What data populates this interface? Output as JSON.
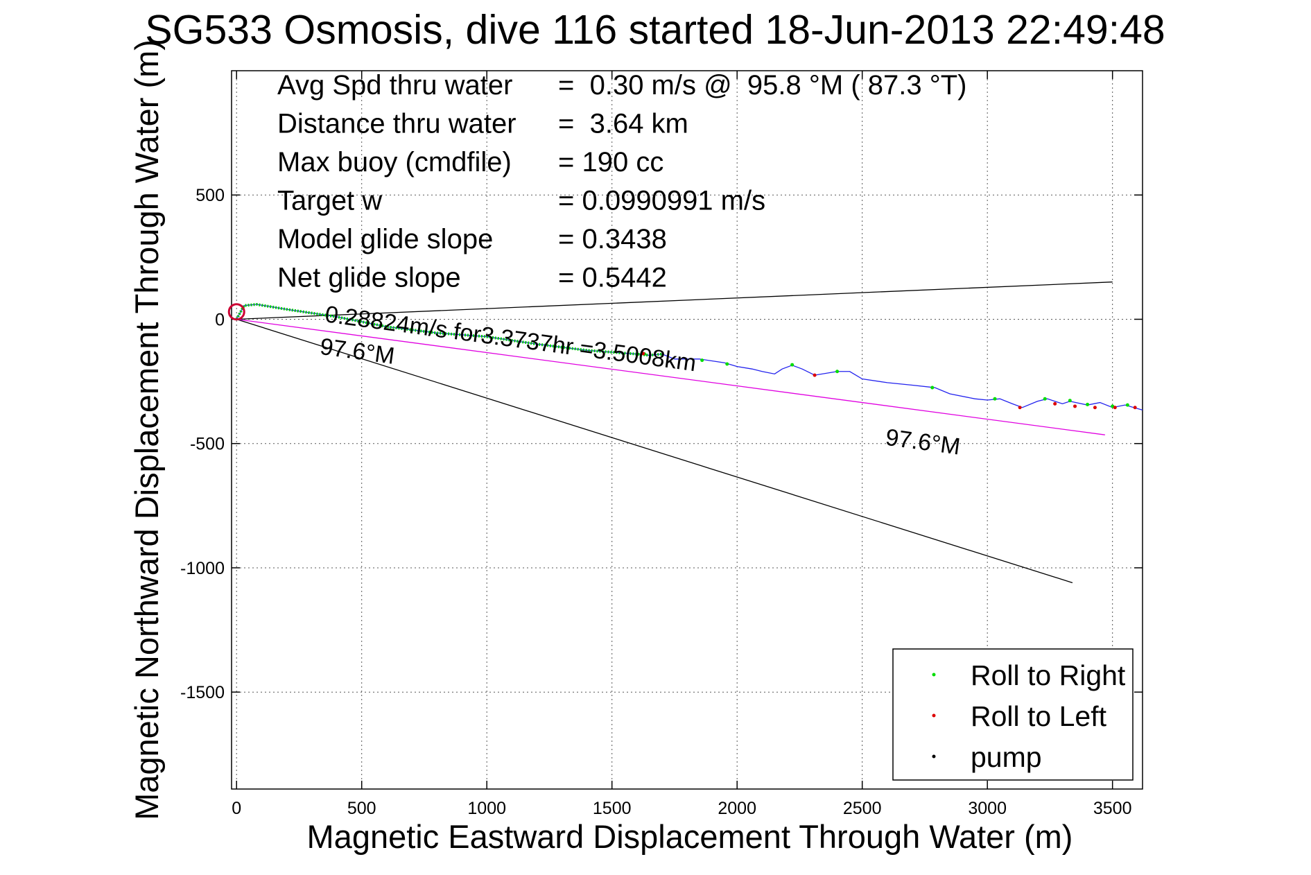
{
  "chart_data": {
    "type": "line",
    "title": "SG533 Osmosis, dive 116 started 18-Jun-2013 22:49:48",
    "xlabel": "Magnetic Eastward Displacement Through Water (m)",
    "ylabel": "Magnetic Northward Displacement Through Water (m)",
    "xlim": [
      -20,
      3620
    ],
    "ylim": [
      -1890,
      1000
    ],
    "xticks": [
      0,
      500,
      1000,
      1500,
      2000,
      2500,
      3000,
      3500
    ],
    "yticks": [
      500,
      0,
      -500,
      -1000,
      -1500
    ],
    "grid": true,
    "info_lines": [
      {
        "label": "Avg Spd thru water",
        "value": "=  0.30 m/s @  95.8 °M ( 87.3 °T)"
      },
      {
        "label": "Distance thru water",
        "value": "=  3.64 km"
      },
      {
        "label": "Max buoy (cmdfile)",
        "value": "= 190 cc"
      },
      {
        "label": "Target w",
        "value": "= 0.0990991 m/s"
      },
      {
        "label": "Model glide slope",
        "value": "= 0.3438"
      },
      {
        "label": "Net glide slope",
        "value": "= 0.5442"
      }
    ],
    "annotations": [
      {
        "text": "0.28824m/s for3.3737hr =3.5008km",
        "x": 350,
        "y": -10,
        "angle_deg": 7.6
      },
      {
        "text": "97.6°M",
        "x": 330,
        "y": -140,
        "angle_deg": 7.6
      },
      {
        "text": "97.6°M",
        "x": 2590,
        "y": -505,
        "angle_deg": 7.6
      }
    ],
    "lines": [
      {
        "name": "upper reference",
        "color": "#000000",
        "points": [
          [
            0,
            0
          ],
          [
            3500,
            150
          ]
        ]
      },
      {
        "name": "lower reference",
        "color": "#000000",
        "points": [
          [
            0,
            0
          ],
          [
            3340,
            -1060
          ]
        ]
      },
      {
        "name": "course line",
        "color": "#e000e0",
        "points": [
          [
            0,
            0
          ],
          [
            3470,
            -465
          ]
        ]
      }
    ],
    "series": [
      {
        "name": "track",
        "color": "#2222ee",
        "x": [
          0,
          30,
          80,
          200,
          400,
          600,
          800,
          1000,
          1200,
          1400,
          1600,
          1650,
          1700,
          1750,
          1850,
          1950,
          2000,
          2060,
          2100,
          2150,
          2180,
          2220,
          2260,
          2310,
          2400,
          2450,
          2500,
          2600,
          2700,
          2790,
          2850,
          2950,
          3000,
          3050,
          3100,
          3140,
          3200,
          3240,
          3300,
          3330,
          3400,
          3450,
          3500,
          3550,
          3620
        ],
        "y": [
          0,
          55,
          60,
          40,
          10,
          -30,
          -55,
          -70,
          -100,
          -125,
          -140,
          -145,
          -140,
          -160,
          -160,
          -175,
          -190,
          -200,
          -210,
          -220,
          -200,
          -185,
          -200,
          -225,
          -210,
          -210,
          -240,
          -255,
          -265,
          -275,
          -300,
          -320,
          -325,
          -320,
          -340,
          -355,
          -330,
          -320,
          -340,
          -330,
          -345,
          -335,
          -355,
          -345,
          -365
        ]
      }
    ],
    "markers": [
      {
        "name": "Roll to Right",
        "color": "#00dd00"
      },
      {
        "name": "Roll to Left",
        "color": "#dd0000"
      },
      {
        "name": "pump",
        "color": "#000000"
      }
    ],
    "right_markers": [
      [
        1630,
        -140
      ],
      [
        1860,
        -165
      ],
      [
        1960,
        -180
      ],
      [
        2220,
        -183
      ],
      [
        2400,
        -210
      ],
      [
        2780,
        -275
      ],
      [
        3030,
        -320
      ],
      [
        3230,
        -320
      ],
      [
        3330,
        -327
      ],
      [
        3400,
        -343
      ],
      [
        3500,
        -350
      ],
      [
        3560,
        -345
      ]
    ],
    "left_markers": [
      [
        1625,
        -138
      ],
      [
        2310,
        -225
      ],
      [
        3130,
        -355
      ],
      [
        3270,
        -340
      ],
      [
        3350,
        -350
      ],
      [
        3430,
        -355
      ],
      [
        3510,
        -355
      ],
      [
        3590,
        -355
      ]
    ],
    "start_loop": {
      "x": 0,
      "y": 30
    },
    "legend": {
      "position": "bottom-right",
      "entries": [
        "Roll to Right",
        "Roll to Left",
        "pump"
      ]
    }
  }
}
